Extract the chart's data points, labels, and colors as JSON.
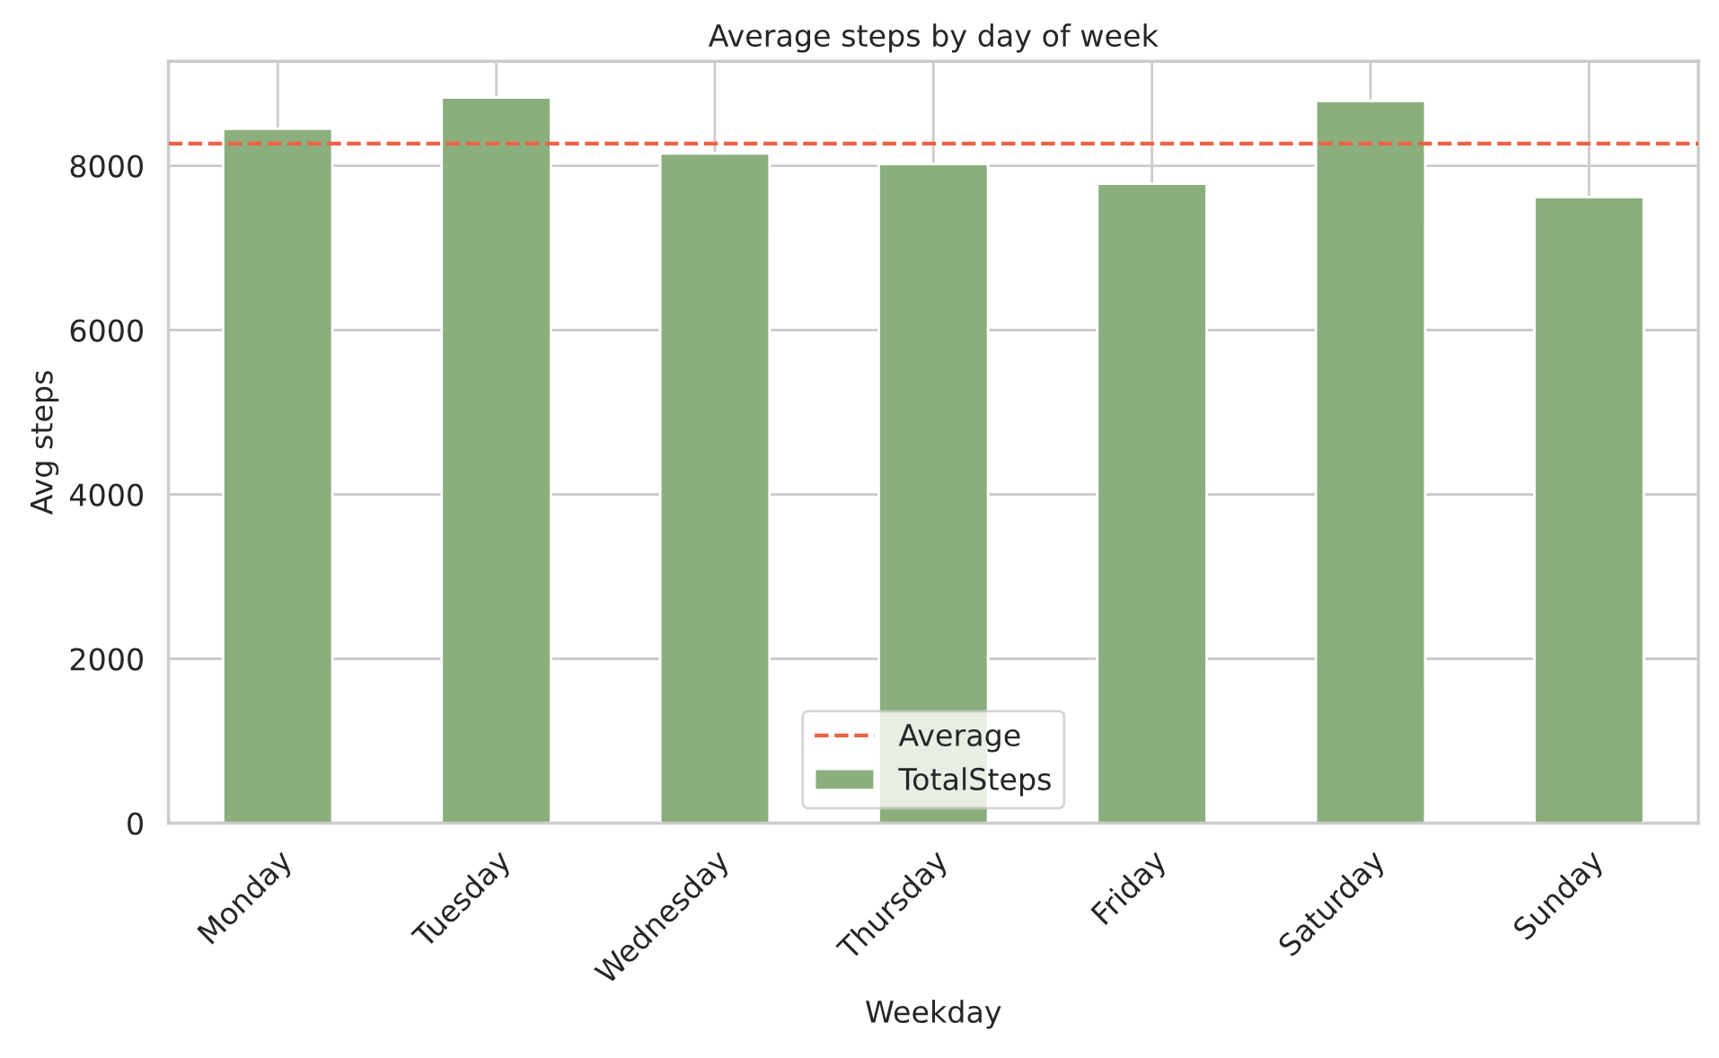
{
  "chart_data": {
    "type": "bar",
    "title": "Average steps by day of week",
    "xlabel": "Weekday",
    "ylabel": "Avg steps",
    "categories": [
      "Monday",
      "Tuesday",
      "Wednesday",
      "Thursday",
      "Friday",
      "Saturday",
      "Sunday"
    ],
    "series": [
      {
        "name": "TotalSteps",
        "color": "#8aaf7c",
        "values": [
          8450,
          8830,
          8150,
          8020,
          7780,
          8790,
          7620
        ]
      }
    ],
    "ylim": [
      0,
      9270
    ],
    "yticks": [
      0,
      2000,
      4000,
      6000,
      8000
    ],
    "ref_lines": [
      {
        "axis": "y",
        "value": 8270,
        "label": "Average",
        "color": "#ee6146",
        "line_style": "dashed"
      }
    ],
    "grid": true,
    "legend": "bottom"
  }
}
